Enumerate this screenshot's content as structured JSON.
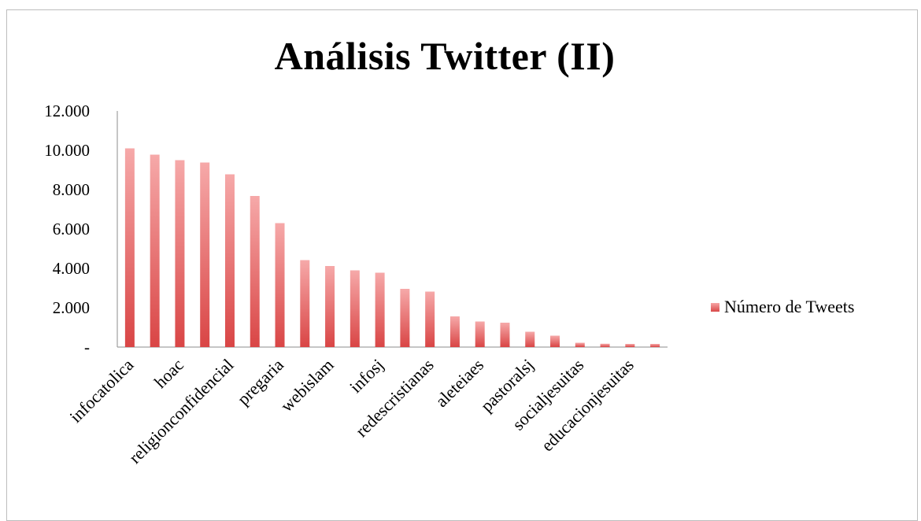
{
  "chart_data": {
    "type": "bar",
    "title": "Análisis Twitter (II)",
    "xlabel": "",
    "ylabel": "",
    "ylim": [
      0,
      12000
    ],
    "yticks": [
      "-",
      "2.000",
      "4.000",
      "6.000",
      "8.000",
      "10.000",
      "12.000"
    ],
    "ytick_values": [
      0,
      2000,
      4000,
      6000,
      8000,
      10000,
      12000
    ],
    "categories": [
      "infocatolica",
      "",
      "hoac",
      "",
      "religionconfidencial",
      "",
      "pregaria",
      "",
      "webislam",
      "",
      "infosj",
      "",
      "redescristianas",
      "",
      "aleteiaes",
      "",
      "pastoralsj",
      "",
      "socialjesuitas",
      "",
      "educacionjesuitas",
      ""
    ],
    "series": [
      {
        "name": "Número de Tweets",
        "values": [
          10100,
          9780,
          9500,
          9380,
          8780,
          7680,
          6300,
          4420,
          4120,
          3900,
          3780,
          2960,
          2820,
          1560,
          1300,
          1240,
          780,
          580,
          220,
          170,
          160,
          160
        ]
      }
    ],
    "grid": false,
    "legend_position": "right",
    "bar_color_top": "#f6a9a9",
    "bar_color_bottom": "#d94545"
  }
}
